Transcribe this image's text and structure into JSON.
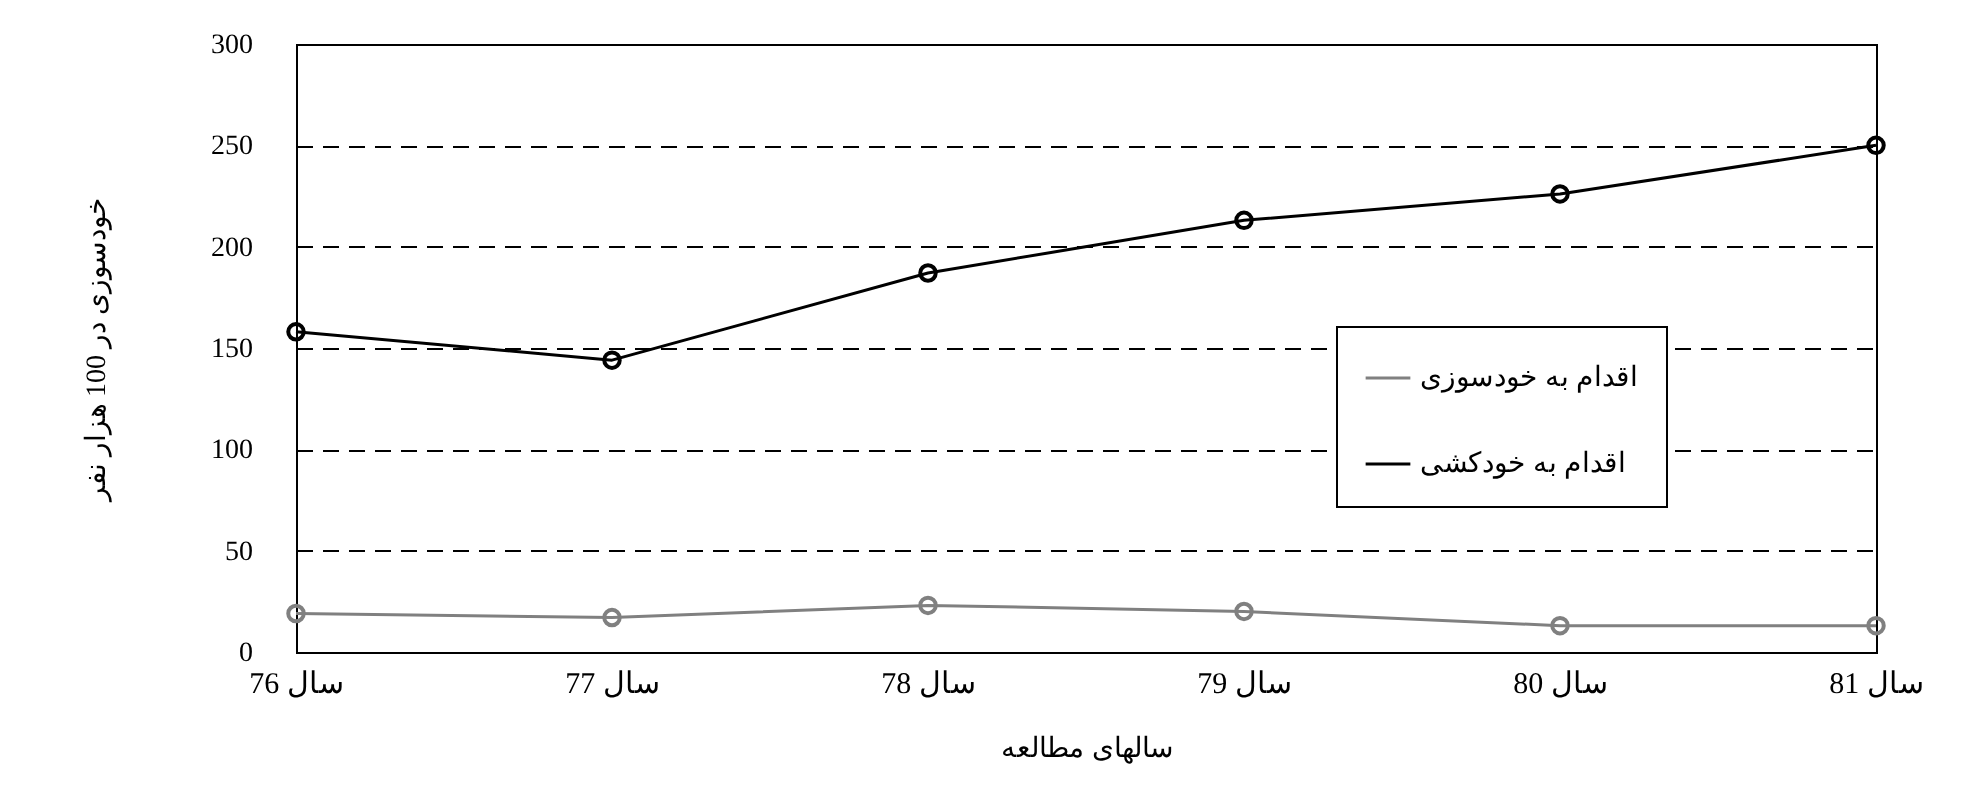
{
  "chart_data": {
    "type": "line",
    "xlabel": "سالهای مطالعه",
    "ylabel": "خودسوزی در 100 هزار نفر",
    "categories": [
      "سال 76",
      "سال 77",
      "سال 78",
      "سال 79",
      "سال 80",
      "سال 81"
    ],
    "series": [
      {
        "name": "اقدام به خودسوزی",
        "color": "#808080",
        "values": [
          19,
          17,
          23,
          20,
          13,
          13
        ]
      },
      {
        "name": "اقدام به خودکشی",
        "color": "#000000",
        "values": [
          158,
          144,
          187,
          213,
          226,
          250
        ]
      }
    ],
    "ylim": [
      0,
      300
    ],
    "yticks": [
      0,
      50,
      100,
      150,
      200,
      250,
      300
    ],
    "grid": "y",
    "legend": "right",
    "marker": "circle",
    "line_style": "solid"
  }
}
